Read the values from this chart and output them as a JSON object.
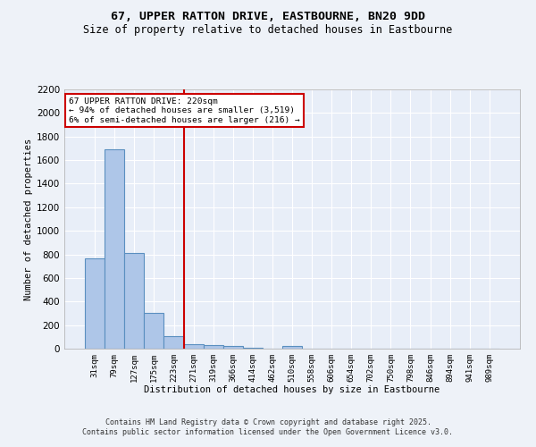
{
  "title1": "67, UPPER RATTON DRIVE, EASTBOURNE, BN20 9DD",
  "title2": "Size of property relative to detached houses in Eastbourne",
  "xlabel": "Distribution of detached houses by size in Eastbourne",
  "ylabel": "Number of detached properties",
  "categories": [
    "31sqm",
    "79sqm",
    "127sqm",
    "175sqm",
    "223sqm",
    "271sqm",
    "319sqm",
    "366sqm",
    "414sqm",
    "462sqm",
    "510sqm",
    "558sqm",
    "606sqm",
    "654sqm",
    "702sqm",
    "750sqm",
    "798sqm",
    "846sqm",
    "894sqm",
    "941sqm",
    "989sqm"
  ],
  "values": [
    770,
    1690,
    810,
    305,
    110,
    40,
    30,
    20,
    10,
    0,
    20,
    0,
    0,
    0,
    0,
    0,
    0,
    0,
    0,
    0,
    0
  ],
  "bar_color": "#aec6e8",
  "bar_edge_color": "#5a8fc0",
  "bar_linewidth": 0.8,
  "redline_x": 4.5,
  "redline_color": "#cc0000",
  "annotation_title": "67 UPPER RATTON DRIVE: 220sqm",
  "annotation_line1": "← 94% of detached houses are smaller (3,519)",
  "annotation_line2": "6% of semi-detached houses are larger (216) →",
  "annotation_box_color": "#cc0000",
  "ylim": [
    0,
    2200
  ],
  "yticks": [
    0,
    200,
    400,
    600,
    800,
    1000,
    1200,
    1400,
    1600,
    1800,
    2000,
    2200
  ],
  "bg_color": "#e8eef8",
  "grid_color": "#ffffff",
  "fig_bg_color": "#eef2f8",
  "footer1": "Contains HM Land Registry data © Crown copyright and database right 2025.",
  "footer2": "Contains public sector information licensed under the Open Government Licence v3.0."
}
